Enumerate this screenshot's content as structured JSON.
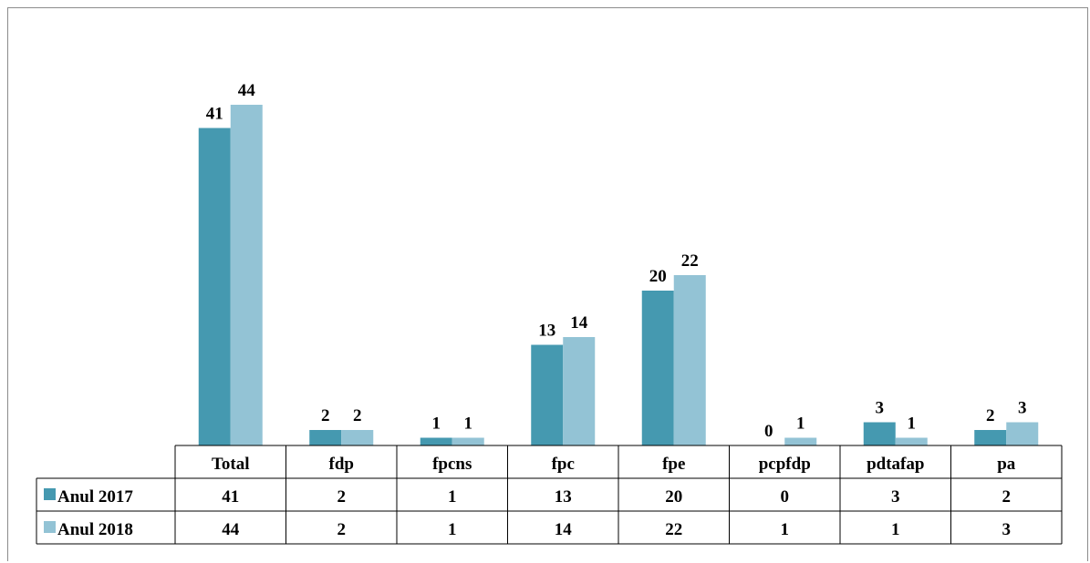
{
  "chart_data": {
    "type": "bar",
    "categories": [
      "Total",
      "fdp",
      "fpcns",
      "fpc",
      "fpe",
      "pcpfdp",
      "pdtafap",
      "pa"
    ],
    "series": [
      {
        "name": "Anul 2017",
        "values": [
          41,
          2,
          1,
          13,
          20,
          0,
          3,
          2
        ],
        "color": "#4599b0"
      },
      {
        "name": "Anul 2018",
        "values": [
          44,
          2,
          1,
          14,
          22,
          1,
          1,
          3
        ],
        "color": "#93c3d5"
      }
    ],
    "data_table": true,
    "legend_in_table": true,
    "grid": false
  }
}
